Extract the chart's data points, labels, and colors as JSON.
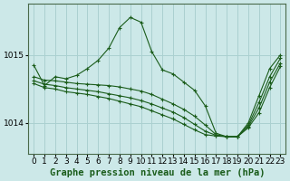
{
  "title": "Graphe pression niveau de la mer (hPa)",
  "background_color": "#cce8e8",
  "line_color": "#1a5c1a",
  "grid_color": "#aad0d0",
  "ylim": [
    1013.55,
    1015.75
  ],
  "xlim": [
    -0.5,
    23.5
  ],
  "yticks": [
    1014,
    1015
  ],
  "xticks": [
    0,
    1,
    2,
    3,
    4,
    5,
    6,
    7,
    8,
    9,
    10,
    11,
    12,
    13,
    14,
    15,
    16,
    17,
    18,
    19,
    20,
    21,
    22,
    23
  ],
  "series": [
    [
      1014.85,
      1014.55,
      1014.68,
      1014.63,
      1014.68,
      1014.78,
      1014.9,
      1015.15,
      1015.45,
      1015.58,
      1015.52,
      1015.08,
      1014.78,
      1014.72,
      1014.62,
      1014.5,
      1014.28,
      1013.85,
      1013.82,
      1013.82,
      1014.02,
      1014.42,
      1014.82,
      1015.02
    ],
    [
      1014.85,
      1014.55,
      1014.62,
      1014.45,
      1014.6,
      1014.65,
      1014.72,
      1014.72,
      1014.68,
      1014.65,
      1014.62,
      1014.58,
      1014.55,
      1014.52,
      1014.48,
      1014.38,
      1014.05,
      1013.82,
      1013.82,
      1013.82,
      1013.98,
      1014.22,
      1014.68,
      1014.95
    ],
    [
      1014.85,
      1014.55,
      1014.62,
      1014.45,
      1014.6,
      1014.62,
      1014.65,
      1014.65,
      1014.62,
      1014.58,
      1014.55,
      1014.48,
      1014.42,
      1014.38,
      1014.32,
      1014.18,
      1013.95,
      1013.82,
      1013.82,
      1013.82,
      1013.95,
      1014.15,
      1014.58,
      1014.9
    ],
    [
      1014.85,
      1014.55,
      1014.62,
      1014.45,
      1014.6,
      1014.6,
      1014.62,
      1014.6,
      1014.55,
      1014.52,
      1014.48,
      1014.38,
      1014.3,
      1014.25,
      1014.18,
      1014.02,
      1013.88,
      1013.82,
      1013.82,
      1013.82,
      1013.92,
      1014.08,
      1014.48,
      1014.85
    ]
  ],
  "xlabel_fontsize": 7,
  "title_fontsize": 7.5,
  "tick_fontsize": 6.5,
  "figsize": [
    3.2,
    2.0
  ],
  "dpi": 100
}
